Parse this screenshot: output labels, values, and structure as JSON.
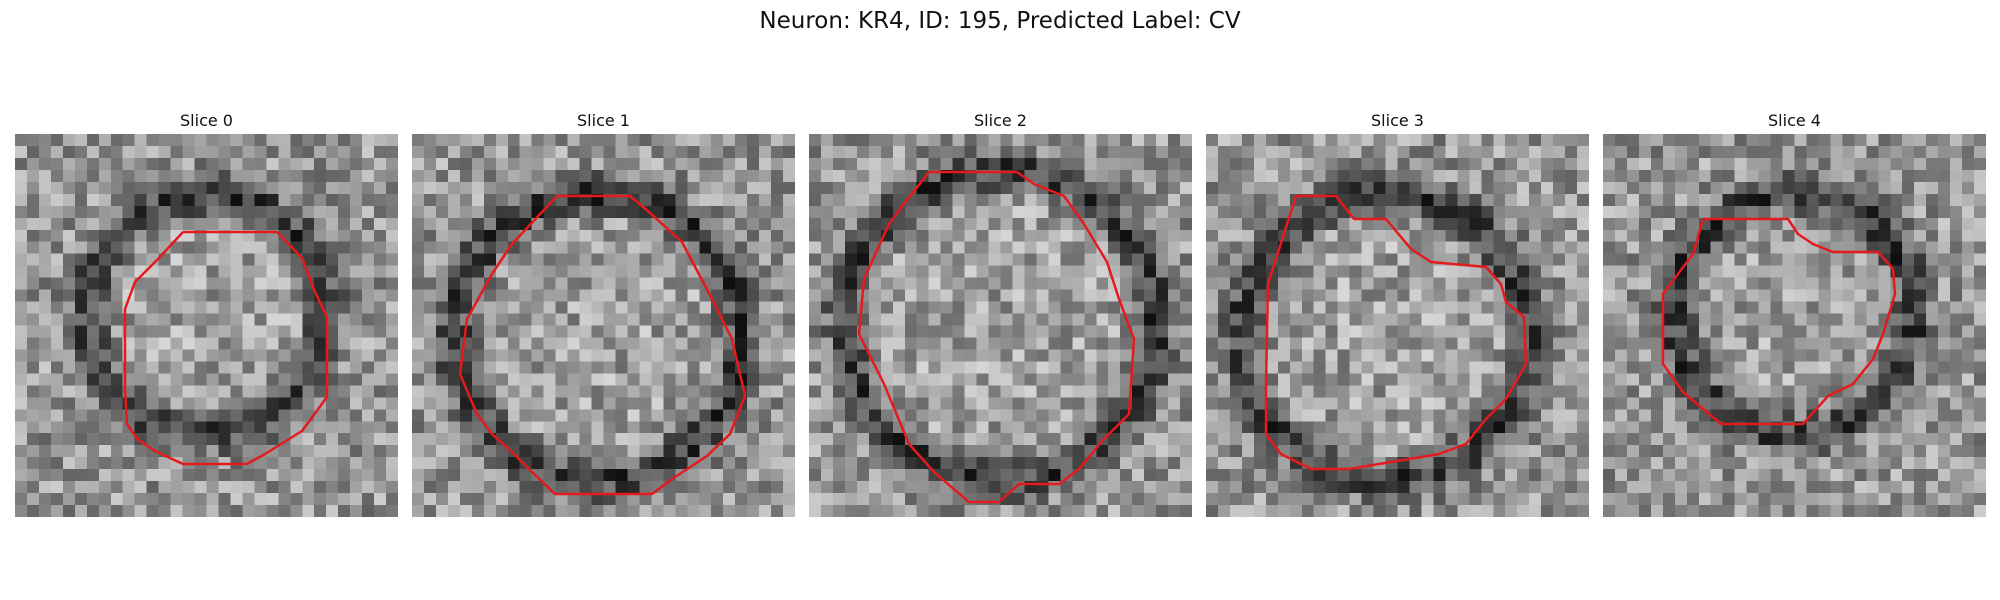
{
  "figure": {
    "title": "Neuron: KR4, ID: 195, Predicted Label: CV"
  },
  "contour_color": "#e41a1c",
  "panels": [
    {
      "title": "Slice 0"
    },
    {
      "title": "Slice 1"
    },
    {
      "title": "Slice 2"
    },
    {
      "title": "Slice 3"
    },
    {
      "title": "Slice 4"
    }
  ]
}
